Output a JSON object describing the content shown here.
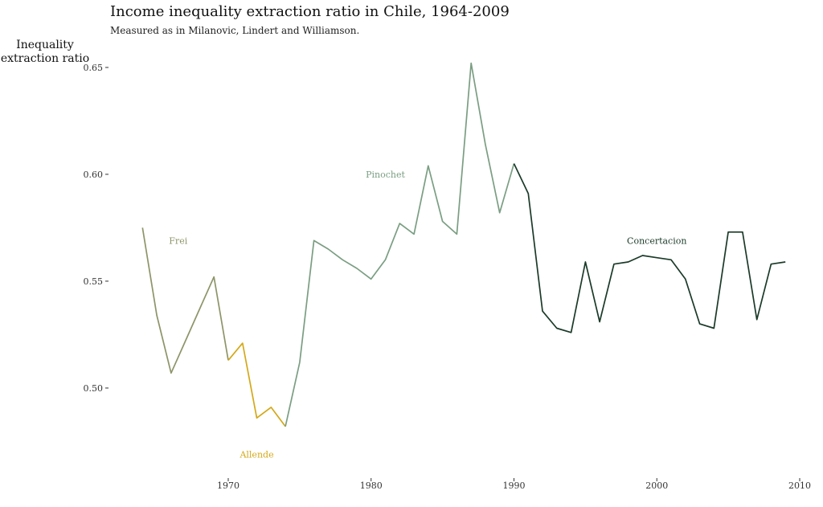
{
  "chart_data": {
    "type": "line",
    "title": "Income inequality extraction ratio in Chile, 1964-2009",
    "subtitle": "Measured as in Milanovic, Lindert and Williamson.",
    "xlabel": "",
    "ylabel_lines": [
      "Inequality",
      "extraction ratio"
    ],
    "xlim": [
      1962.8,
      2010
    ],
    "ylim": [
      0.459,
      0.659
    ],
    "x_ticks": [
      1970,
      1980,
      1990,
      2000,
      2010
    ],
    "y_ticks": [
      0.5,
      0.55,
      0.6,
      0.65
    ],
    "y_tick_labels": [
      "0.50",
      "0.55",
      "0.60",
      "0.65"
    ],
    "grid": false,
    "legend": "none (direct labels)",
    "series": [
      {
        "name": "Frei",
        "color": "#8e9468",
        "label_pos": [
          1966.5,
          0.569
        ],
        "points": [
          [
            1964,
            0.575
          ],
          [
            1965,
            0.534
          ],
          [
            1966,
            0.507
          ],
          [
            1967,
            0.522
          ],
          [
            1968,
            0.537
          ],
          [
            1969,
            0.552
          ],
          [
            1970,
            0.513
          ]
        ]
      },
      {
        "name": "Allende",
        "color": "#d4a817",
        "label_pos": [
          1972,
          0.469
        ],
        "points": [
          [
            1970,
            0.513
          ],
          [
            1971,
            0.521
          ],
          [
            1972,
            0.486
          ],
          [
            1973,
            0.491
          ],
          [
            1974,
            0.482
          ]
        ]
      },
      {
        "name": "Pinochet",
        "color": "#7a9e82",
        "label_pos": [
          1981,
          0.6
        ],
        "points": [
          [
            1974,
            0.482
          ],
          [
            1975,
            0.512
          ],
          [
            1976,
            0.569
          ],
          [
            1977,
            0.565
          ],
          [
            1978,
            0.56
          ],
          [
            1979,
            0.556
          ],
          [
            1980,
            0.551
          ],
          [
            1981,
            0.56
          ],
          [
            1982,
            0.577
          ],
          [
            1983,
            0.572
          ],
          [
            1984,
            0.604
          ],
          [
            1985,
            0.578
          ],
          [
            1986,
            0.572
          ],
          [
            1987,
            0.652
          ],
          [
            1988,
            0.614
          ],
          [
            1989,
            0.582
          ],
          [
            1990,
            0.605
          ]
        ]
      },
      {
        "name": "Concertacion",
        "color": "#1a3a28",
        "label_pos": [
          2000,
          0.569
        ],
        "points": [
          [
            1990,
            0.605
          ],
          [
            1991,
            0.591
          ],
          [
            1992,
            0.536
          ],
          [
            1993,
            0.528
          ],
          [
            1994,
            0.526
          ],
          [
            1995,
            0.559
          ],
          [
            1996,
            0.531
          ],
          [
            1997,
            0.558
          ],
          [
            1998,
            0.559
          ],
          [
            1999,
            0.562
          ],
          [
            2000,
            0.561
          ],
          [
            2001,
            0.56
          ],
          [
            2002,
            0.551
          ],
          [
            2003,
            0.53
          ],
          [
            2004,
            0.528
          ],
          [
            2005,
            0.573
          ],
          [
            2006,
            0.573
          ],
          [
            2007,
            0.532
          ],
          [
            2008,
            0.558
          ],
          [
            2009,
            0.559
          ]
        ]
      }
    ]
  }
}
